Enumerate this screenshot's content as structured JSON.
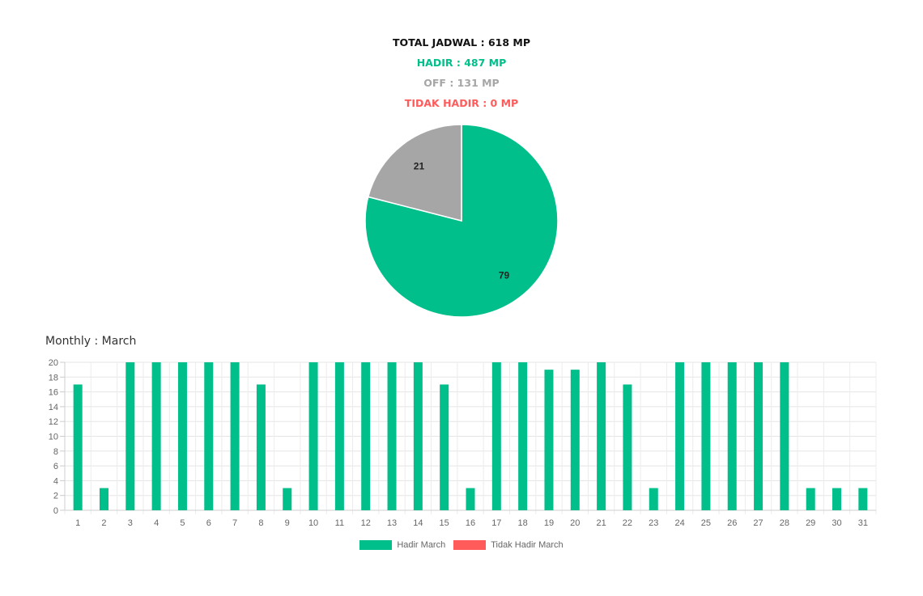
{
  "summary": {
    "total": "TOTAL JADWAL : 618 MP",
    "hadir": "HADIR : 487 MP",
    "off": "OFF : 131 MP",
    "tidak_hadir": "TIDAK HADIR : 0 MP"
  },
  "colors": {
    "total": "#111111",
    "hadir": "#00bf8a",
    "off": "#a6a6a6",
    "tidak_hadir": "#ff5b5b"
  },
  "chart_data": [
    {
      "type": "pie",
      "slices": [
        {
          "label": "79",
          "value": 79,
          "color": "#00bf8a"
        },
        {
          "label": "21",
          "value": 21,
          "color": "#a6a6a6"
        }
      ]
    },
    {
      "type": "bar",
      "title": "Monthly : March",
      "categories": [
        "1",
        "2",
        "3",
        "4",
        "5",
        "6",
        "7",
        "8",
        "9",
        "10",
        "11",
        "12",
        "13",
        "14",
        "15",
        "16",
        "17",
        "18",
        "19",
        "20",
        "21",
        "22",
        "23",
        "24",
        "25",
        "26",
        "27",
        "28",
        "29",
        "30",
        "31"
      ],
      "series": [
        {
          "name": "Hadir March",
          "color": "#00bf8a",
          "values": [
            17,
            3,
            20,
            20,
            20,
            20,
            20,
            17,
            3,
            20,
            20,
            20,
            20,
            20,
            17,
            3,
            20,
            20,
            19,
            19,
            20,
            17,
            3,
            20,
            20,
            20,
            20,
            20,
            3,
            3,
            3
          ]
        },
        {
          "name": "Tidak Hadir March",
          "color": "#ff5b5b",
          "values": [
            0,
            0,
            0,
            0,
            0,
            0,
            0,
            0,
            0,
            0,
            0,
            0,
            0,
            0,
            0,
            0,
            0,
            0,
            0,
            0,
            0,
            0,
            0,
            0,
            0,
            0,
            0,
            0,
            0,
            0,
            0
          ]
        }
      ],
      "ylim": [
        0,
        20
      ],
      "yticks": [
        0,
        2,
        4,
        6,
        8,
        10,
        12,
        14,
        16,
        18,
        20
      ],
      "grid": true,
      "legend": "bottom"
    }
  ]
}
